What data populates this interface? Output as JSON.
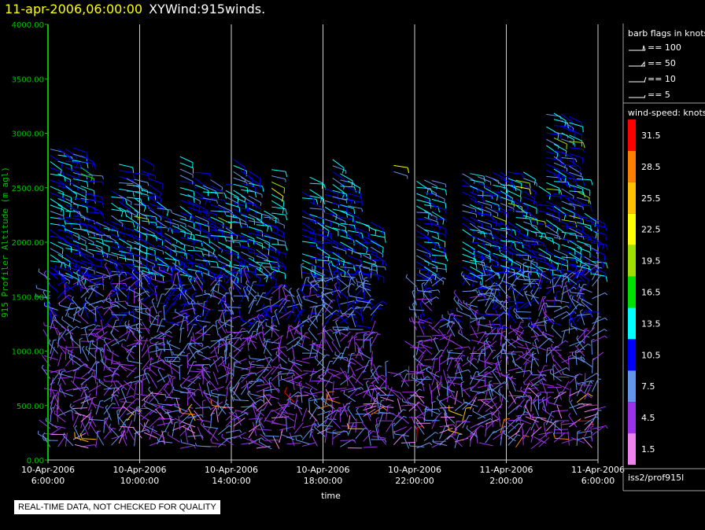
{
  "title": {
    "date": "11-apr-2006,06:00:00",
    "name": "XYWind:915winds."
  },
  "chart_data": {
    "type": "wind-barb time-height",
    "ylabel": "915 Profiler Altitude (m agl)",
    "xlabel": "time",
    "ylim": [
      0,
      4000
    ],
    "yticks": [
      "0.00",
      "500.00",
      "1000.00",
      "1500.00",
      "2000.00",
      "2500.00",
      "3000.00",
      "3500.00",
      "4000.00"
    ],
    "xticks": [
      {
        "date": "10-Apr-2006",
        "time": "6:00:00"
      },
      {
        "date": "10-Apr-2006",
        "time": "10:00:00"
      },
      {
        "date": "10-Apr-2006",
        "time": "14:00:00"
      },
      {
        "date": "10-Apr-2006",
        "time": "18:00:00"
      },
      {
        "date": "10-Apr-2006",
        "time": "22:00:00"
      },
      {
        "date": "11-Apr-2006",
        "time": "2:00:00"
      },
      {
        "date": "11-Apr-2006",
        "time": "6:00:00"
      }
    ],
    "x_range_hours": [
      0,
      24
    ],
    "grid": "vertical lines at each x tick",
    "barb_legend": {
      "title": "barb flags in knots",
      "entries": [
        "== 100",
        "== 50",
        "== 10",
        "== 5"
      ]
    },
    "speed_legend": {
      "title": "wind-speed: knots",
      "levels": [
        {
          "label": "31.5",
          "color": "#ff0000"
        },
        {
          "label": "28.5",
          "color": "#ff8000"
        },
        {
          "label": "25.5",
          "color": "#ffc000"
        },
        {
          "label": "22.5",
          "color": "#ffff00"
        },
        {
          "label": "19.5",
          "color": "#a0e000"
        },
        {
          "label": "16.5",
          "color": "#00e000"
        },
        {
          "label": "13.5",
          "color": "#00ffff"
        },
        {
          "label": "10.5",
          "color": "#0000ff"
        },
        {
          "label": "7.5",
          "color": "#6495ed"
        },
        {
          "label": "4.5",
          "color": "#9a32e8"
        },
        {
          "label": "1.5",
          "color": "#ee82ee"
        }
      ]
    },
    "barbs": {
      "time_step_hours": 0.333,
      "height_step_m": 57,
      "max_height_m": 3200,
      "description": "wind barbs at ~20-minute intervals from 0-3000 m; speeds mostly 4-13 knots, strongest near 2000-2500 m (blue), weak near-surface (purple), isolated 25-31 knot barbs near 200-500 m"
    }
  },
  "source_label": "iss2/prof915l",
  "qc_note": "REAL-TIME DATA, NOT CHECKED FOR QUALITY"
}
